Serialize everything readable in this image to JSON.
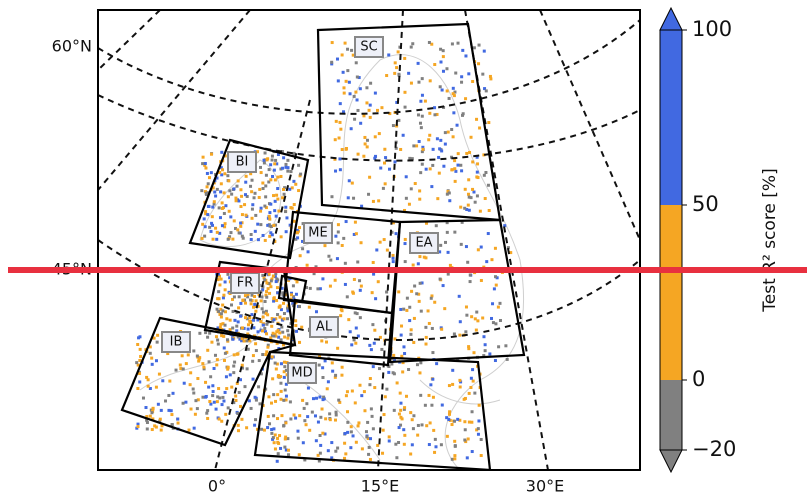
{
  "map": {
    "lat_labels": [
      "60°N",
      "45°N"
    ],
    "lon_labels": [
      "0°",
      "15°E",
      "30°E"
    ],
    "regions": [
      "SC",
      "BI",
      "ME",
      "EA",
      "FR",
      "AL",
      "IB",
      "MD"
    ]
  },
  "colorbar": {
    "label": "Test R² score [%]",
    "lim": [
      -20,
      100
    ],
    "ticks": [
      {
        "value": -20,
        "label": "−20"
      },
      0,
      50,
      100
    ],
    "colors": [
      "#808080",
      "#f5a623",
      "#4169e1"
    ]
  }
}
